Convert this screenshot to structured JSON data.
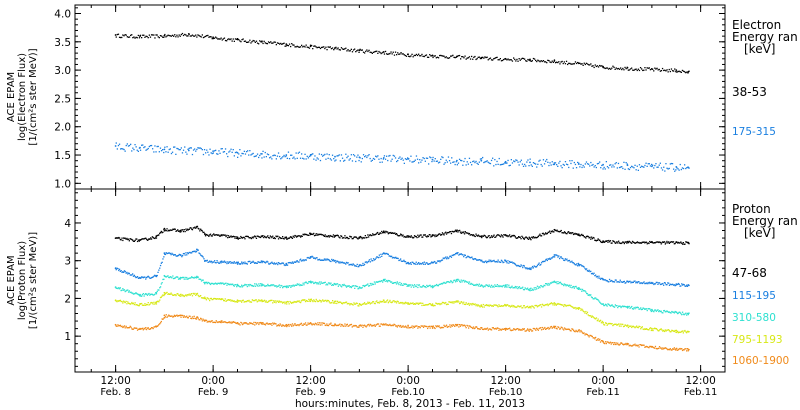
{
  "chart_data": [
    {
      "type": "scatter",
      "ylabel_lines": [
        "ACE EPAM",
        "log(Electron Flux)",
        "[1/(cm²s ster MeV)]"
      ],
      "yticks": [
        "1.0",
        "1.5",
        "2.0",
        "2.5",
        "3.0",
        "3.5",
        "4.0"
      ],
      "ylim": [
        0.9,
        4.15
      ],
      "legend_title_lines": [
        "Electron",
        "Energy ran"
      ],
      "legend_unit": "[keV]",
      "series": [
        {
          "name": "38-53",
          "color": "#000000",
          "x": [
            0,
            6,
            12,
            18,
            24,
            30,
            36,
            42,
            48,
            54,
            60,
            66,
            72,
            78,
            84,
            90,
            96,
            102,
            108,
            114,
            120,
            126,
            132,
            138,
            141
          ],
          "y": [
            3.62,
            3.6,
            3.61,
            3.64,
            3.58,
            3.54,
            3.5,
            3.46,
            3.42,
            3.39,
            3.35,
            3.32,
            3.28,
            3.26,
            3.24,
            3.22,
            3.2,
            3.19,
            3.16,
            3.12,
            3.06,
            3.04,
            3.02,
            3.0,
            2.97
          ]
        },
        {
          "name": "175-315",
          "color": "#1a7fe0",
          "x": [
            0,
            6,
            12,
            18,
            24,
            30,
            36,
            42,
            48,
            54,
            60,
            66,
            72,
            78,
            84,
            90,
            96,
            102,
            108,
            114,
            120,
            126,
            132,
            138,
            141
          ],
          "y": [
            1.66,
            1.63,
            1.6,
            1.58,
            1.57,
            1.54,
            1.52,
            1.5,
            1.49,
            1.47,
            1.46,
            1.45,
            1.43,
            1.42,
            1.4,
            1.4,
            1.38,
            1.37,
            1.36,
            1.34,
            1.33,
            1.32,
            1.3,
            1.29,
            1.28
          ]
        }
      ]
    },
    {
      "type": "line",
      "ylabel_lines": [
        "ACE EPAM",
        "log(Proton Flux)",
        "[1/(cm²s ster MeV)]"
      ],
      "yticks": [
        "1",
        "2",
        "3",
        "4"
      ],
      "ylim": [
        0.05,
        4.9
      ],
      "legend_title_lines": [
        "Proton",
        "Energy ran"
      ],
      "legend_unit": "[keV]",
      "series": [
        {
          "name": "47-68",
          "color": "#000000",
          "x": [
            0,
            6,
            10,
            12,
            16,
            20,
            22,
            26,
            30,
            36,
            42,
            48,
            54,
            60,
            66,
            72,
            78,
            84,
            90,
            96,
            102,
            108,
            114,
            120,
            126,
            132,
            138,
            141
          ],
          "y": [
            3.6,
            3.55,
            3.65,
            3.85,
            3.8,
            3.9,
            3.7,
            3.68,
            3.62,
            3.65,
            3.62,
            3.72,
            3.66,
            3.62,
            3.78,
            3.65,
            3.68,
            3.8,
            3.65,
            3.68,
            3.6,
            3.82,
            3.7,
            3.52,
            3.5,
            3.5,
            3.49,
            3.48
          ]
        },
        {
          "name": "115-195",
          "color": "#1a7fe0",
          "x": [
            0,
            6,
            10,
            12,
            16,
            20,
            22,
            26,
            30,
            36,
            42,
            48,
            54,
            60,
            66,
            72,
            78,
            84,
            90,
            96,
            102,
            108,
            114,
            120,
            126,
            132,
            138,
            141
          ],
          "y": [
            2.8,
            2.55,
            2.6,
            3.2,
            3.15,
            3.3,
            3.0,
            2.98,
            2.95,
            2.98,
            2.92,
            3.1,
            3.0,
            2.88,
            3.2,
            2.95,
            2.95,
            3.2,
            3.0,
            3.0,
            2.8,
            3.15,
            2.9,
            2.5,
            2.45,
            2.42,
            2.38,
            2.35
          ]
        },
        {
          "name": "310-580",
          "color": "#2ee0d0",
          "x": [
            0,
            6,
            10,
            12,
            16,
            20,
            22,
            26,
            30,
            36,
            42,
            48,
            54,
            60,
            66,
            72,
            78,
            84,
            90,
            96,
            102,
            108,
            114,
            120,
            126,
            132,
            138,
            141
          ],
          "y": [
            2.3,
            2.1,
            2.15,
            2.6,
            2.55,
            2.58,
            2.42,
            2.4,
            2.35,
            2.38,
            2.32,
            2.45,
            2.38,
            2.3,
            2.5,
            2.35,
            2.33,
            2.5,
            2.35,
            2.35,
            2.25,
            2.45,
            2.28,
            1.85,
            1.78,
            1.7,
            1.63,
            1.6
          ]
        },
        {
          "name": "795-1193",
          "color": "#d7e816",
          "x": [
            0,
            6,
            10,
            12,
            16,
            20,
            22,
            26,
            30,
            36,
            42,
            48,
            54,
            60,
            66,
            72,
            78,
            84,
            90,
            96,
            102,
            108,
            114,
            120,
            126,
            132,
            138,
            141
          ],
          "y": [
            1.95,
            1.85,
            1.9,
            2.15,
            2.1,
            2.12,
            2.0,
            1.98,
            1.95,
            1.95,
            1.9,
            1.97,
            1.92,
            1.85,
            1.95,
            1.88,
            1.85,
            1.92,
            1.82,
            1.82,
            1.78,
            1.88,
            1.75,
            1.35,
            1.28,
            1.2,
            1.15,
            1.12
          ]
        },
        {
          "name": "1060-1900",
          "color": "#f08a1a",
          "x": [
            0,
            6,
            10,
            12,
            16,
            20,
            22,
            26,
            30,
            36,
            42,
            48,
            54,
            60,
            66,
            72,
            78,
            84,
            90,
            96,
            102,
            108,
            114,
            120,
            126,
            132,
            138,
            141
          ],
          "y": [
            1.3,
            1.2,
            1.25,
            1.55,
            1.55,
            1.5,
            1.42,
            1.4,
            1.35,
            1.35,
            1.3,
            1.35,
            1.32,
            1.28,
            1.32,
            1.27,
            1.25,
            1.3,
            1.22,
            1.2,
            1.18,
            1.25,
            1.15,
            0.85,
            0.8,
            0.72,
            0.67,
            0.65
          ]
        }
      ]
    }
  ],
  "x_axis": {
    "xlim": [
      -10,
      150
    ],
    "ticks": [
      {
        "x": 0,
        "time": "12:00",
        "date": "Feb. 8"
      },
      {
        "x": 24,
        "time": "0:00",
        "date": "Feb. 9"
      },
      {
        "x": 48,
        "time": "12:00",
        "date": "Feb. 9"
      },
      {
        "x": 72,
        "time": "0:00",
        "date": "Feb.10"
      },
      {
        "x": 96,
        "time": "12:00",
        "date": "Feb.10"
      },
      {
        "x": 120,
        "time": "0:00",
        "date": "Feb.11"
      },
      {
        "x": 144,
        "time": "12:00",
        "date": "Feb.11"
      }
    ],
    "label": "hours:minutes, Feb.  8, 2013 - Feb. 11, 2013"
  }
}
